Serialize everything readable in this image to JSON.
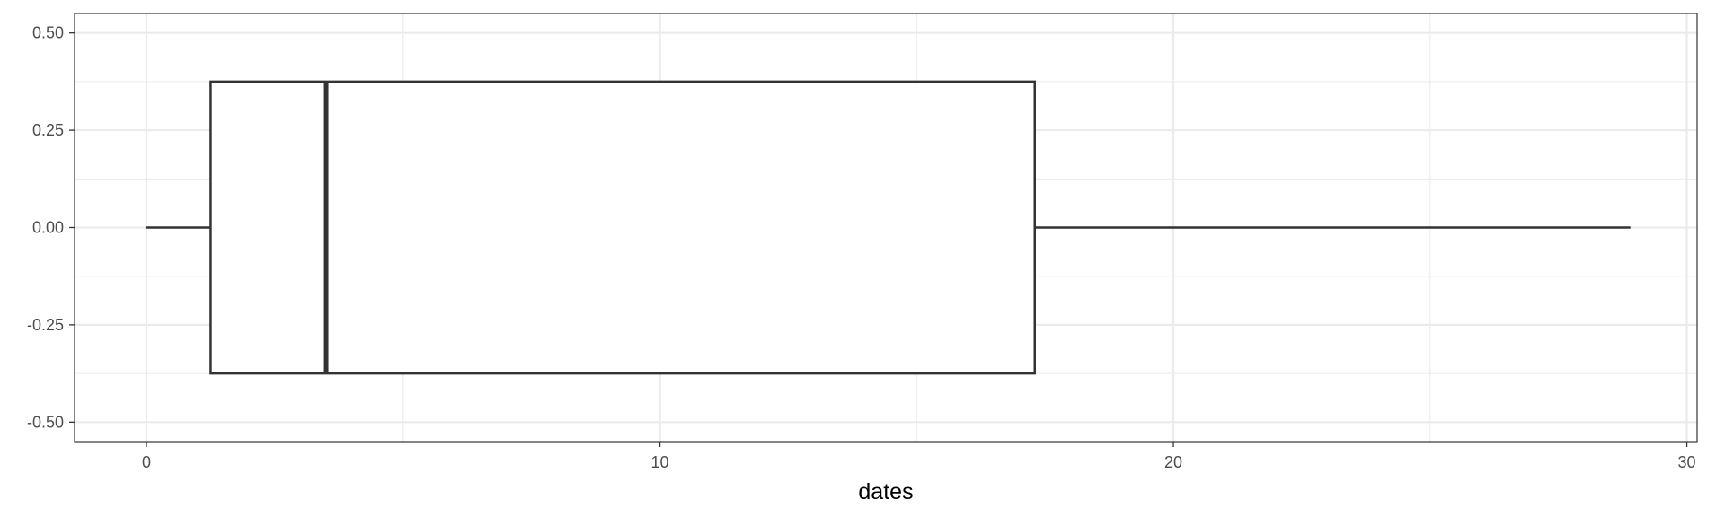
{
  "chart_data": {
    "type": "boxplot",
    "title": "",
    "xlabel": "dates",
    "ylabel": "",
    "xlim": [
      -1.4,
      30.2
    ],
    "ylim": [
      -0.55,
      0.55
    ],
    "x_ticks": [
      0,
      10,
      20,
      30
    ],
    "x_tick_labels": [
      "0",
      "10",
      "20",
      "30"
    ],
    "y_ticks": [
      -0.5,
      -0.25,
      0.0,
      0.25,
      0.5
    ],
    "y_tick_labels": [
      "-0.50",
      "-0.25",
      "0.00",
      "0.25",
      "0.50"
    ],
    "x_minor_ticks": [
      5,
      15,
      25
    ],
    "y_minor_ticks": [
      -0.375,
      -0.125,
      0.125,
      0.375
    ],
    "grid": true,
    "orientation": "horizontal",
    "box": {
      "whisker_low": 0.0,
      "q1": 1.25,
      "median": 3.5,
      "q3": 17.3,
      "whisker_high": 28.9,
      "y_center": 0.0,
      "y_half_extent": 0.375
    },
    "colors": {
      "box_fill": "#ffffff",
      "box_line": "#333333",
      "grid": "#ebebeb",
      "panel_border": "#333333",
      "tick_label": "#4d4d4d"
    }
  }
}
